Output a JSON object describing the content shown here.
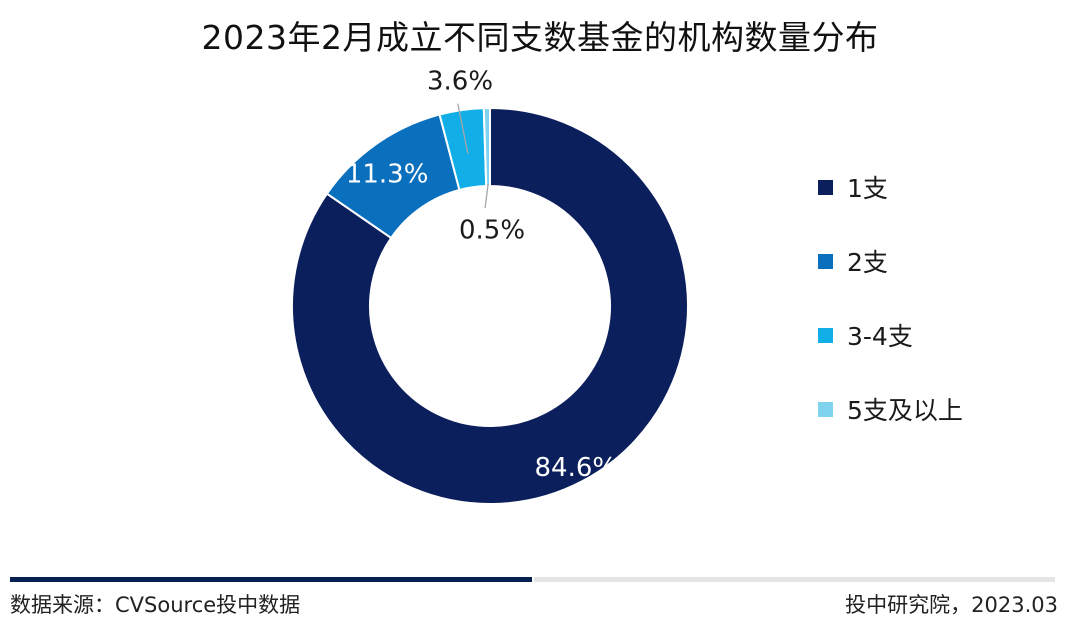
{
  "chart_data": {
    "type": "pie",
    "subtype": "donut",
    "title": "2023年2月成立不同支数基金的机构数量分布",
    "categories": [
      "1支",
      "2支",
      "3-4支",
      "5支及以上"
    ],
    "values": [
      84.6,
      11.3,
      3.6,
      0.5
    ],
    "value_labels": [
      "84.6%",
      "11.3%",
      "3.6%",
      "0.5%"
    ],
    "unit": "%",
    "colors": [
      "#0b1f5c",
      "#0a6fbd",
      "#12aee8",
      "#7fd3ef"
    ],
    "legend_position": "right"
  },
  "footer": {
    "source": "数据来源：CVSource投中数据",
    "credit": "投中研究院，2023.03"
  }
}
